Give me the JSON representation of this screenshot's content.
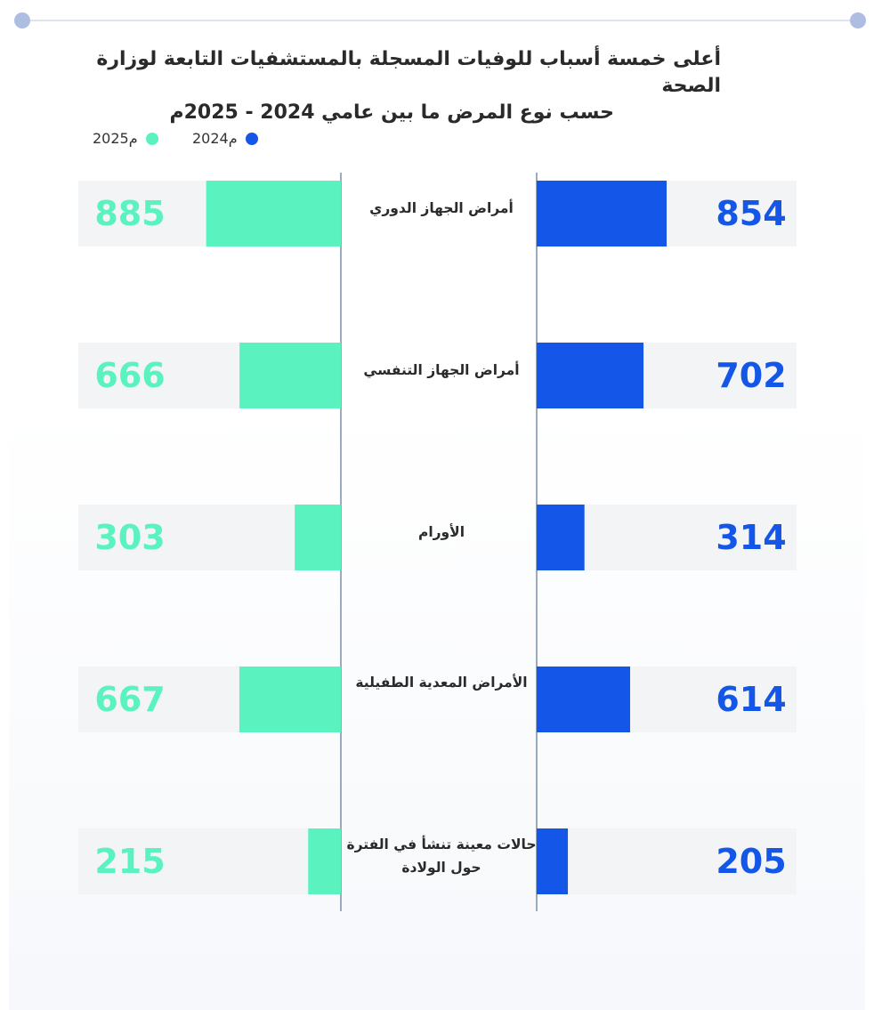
{
  "title_lines": [
    "أعلى خمسة أسباب للوفيات المسجلة بالمستشفيات التابعة لوزارة الصحة",
    "حسب نوع المرض ما بين عامي 2024 - 2025م"
  ],
  "colors": {
    "series_2024": "#1456e8",
    "series_2025": "#5af2bf",
    "track": "#f3f4f6",
    "axis": "#7b8fa8",
    "rule": "#dde3f1",
    "rule_dots": "#aebde2"
  },
  "chart_data": {
    "type": "bar",
    "categories": [
      "أمراض الجهاز الدوري",
      "أمراض الجهاز التنفسي",
      "الأورام",
      "الأمراض المعدية الطفيلية",
      "حالات معينة تنشأ في الفترة حول الولادة"
    ],
    "series": [
      {
        "name": "2024م",
        "values": [
          854,
          702,
          314,
          614,
          205
        ]
      },
      {
        "name": "2025م",
        "values": [
          885,
          666,
          303,
          667,
          215
        ]
      }
    ],
    "title": "أعلى خمسة أسباب للوفيات المسجلة بالمستشفيات التابعة لوزارة الصحة حسب نوع المرض ما بين عامي 2024 - 2025م",
    "xlabel": "",
    "ylabel": "",
    "orientation": "horizontal-butterfly",
    "xlim": [
      0,
      1000
    ],
    "grid": false,
    "legend_position": "top-left",
    "data_labels": true
  }
}
